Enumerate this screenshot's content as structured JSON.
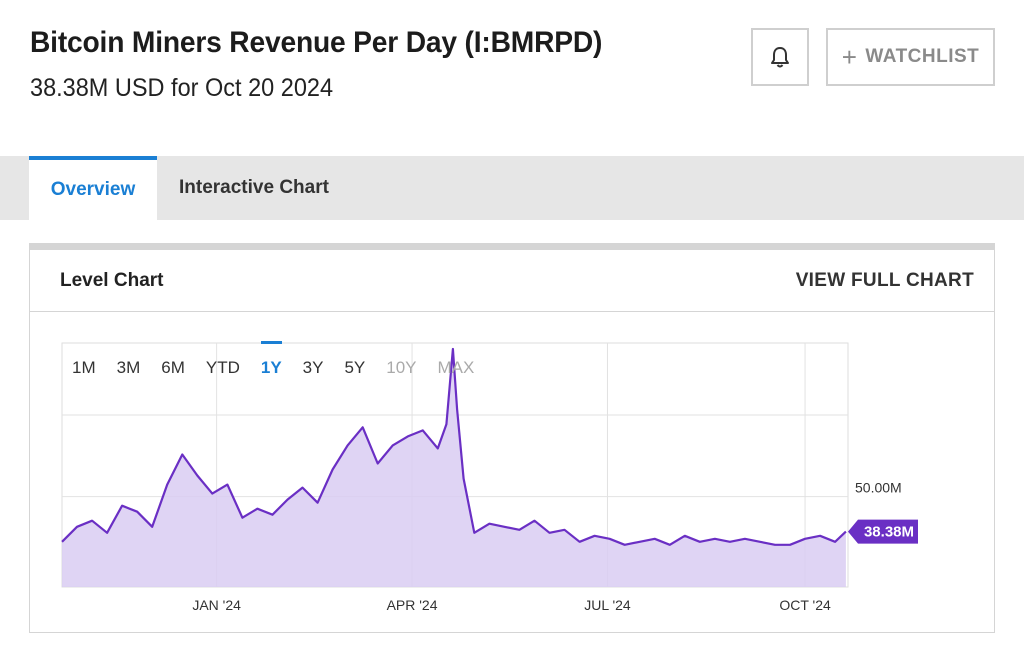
{
  "header": {
    "title": "Bitcoin Miners Revenue Per Day (I:BMRPD)",
    "subtitle": "38.38M USD for Oct 20 2024"
  },
  "buttons": {
    "alert_icon": "bell-icon",
    "watchlist_icon": "plus-icon",
    "watchlist_label": "WATCHLIST"
  },
  "tabs": [
    {
      "label": "Overview",
      "active": true
    },
    {
      "label": "Interactive Chart",
      "active": false
    }
  ],
  "card": {
    "title": "Level Chart",
    "link": "VIEW FULL CHART"
  },
  "ranges": [
    {
      "label": "1M",
      "state": "normal"
    },
    {
      "label": "3M",
      "state": "normal"
    },
    {
      "label": "6M",
      "state": "normal"
    },
    {
      "label": "YTD",
      "state": "normal"
    },
    {
      "label": "1Y",
      "state": "active"
    },
    {
      "label": "3Y",
      "state": "normal"
    },
    {
      "label": "5Y",
      "state": "normal"
    },
    {
      "label": "10Y",
      "state": "disabled"
    },
    {
      "label": "MAX",
      "state": "disabled"
    }
  ],
  "colors": {
    "accent": "#1a7fd4",
    "line": "#6a2fc4",
    "fill": "#d9cdf2",
    "badge": "#6a2fc4"
  },
  "chart_data": {
    "type": "area",
    "title": "",
    "x_ticks": [
      "JAN '24",
      "APR '24",
      "JUL '24",
      "OCT '24"
    ],
    "y_ticks": [
      {
        "label": "50.00M",
        "value": 50
      }
    ],
    "ylim": [
      20,
      101
    ],
    "last_value_label": "38.38M",
    "grid": true,
    "dates": [
      "2023-10-21",
      "2023-10-28",
      "2023-11-04",
      "2023-11-11",
      "2023-11-18",
      "2023-11-25",
      "2023-12-02",
      "2023-12-09",
      "2023-12-16",
      "2023-12-23",
      "2023-12-30",
      "2024-01-06",
      "2024-01-13",
      "2024-01-20",
      "2024-01-27",
      "2024-02-03",
      "2024-02-10",
      "2024-02-17",
      "2024-02-24",
      "2024-03-02",
      "2024-03-09",
      "2024-03-16",
      "2024-03-23",
      "2024-03-30",
      "2024-04-06",
      "2024-04-13",
      "2024-04-17",
      "2024-04-20",
      "2024-04-22",
      "2024-04-25",
      "2024-04-30",
      "2024-05-07",
      "2024-05-14",
      "2024-05-21",
      "2024-05-28",
      "2024-06-04",
      "2024-06-11",
      "2024-06-18",
      "2024-06-25",
      "2024-07-02",
      "2024-07-09",
      "2024-07-16",
      "2024-07-23",
      "2024-07-30",
      "2024-08-06",
      "2024-08-13",
      "2024-08-20",
      "2024-08-27",
      "2024-09-03",
      "2024-09-10",
      "2024-09-17",
      "2024-09-24",
      "2024-10-01",
      "2024-10-08",
      "2024-10-15",
      "2024-10-20"
    ],
    "values": [
      35,
      40,
      42,
      38,
      47,
      45,
      40,
      54,
      64,
      57,
      51,
      54,
      43,
      46,
      44,
      49,
      53,
      48,
      59,
      67,
      73,
      61,
      67,
      70,
      72,
      66,
      74,
      99,
      79,
      56,
      38,
      41,
      40,
      39,
      42,
      38,
      39,
      35,
      37,
      36,
      34,
      35,
      36,
      34,
      37,
      35,
      36,
      35,
      36,
      35,
      34,
      34,
      36,
      37,
      35,
      38.38
    ]
  }
}
